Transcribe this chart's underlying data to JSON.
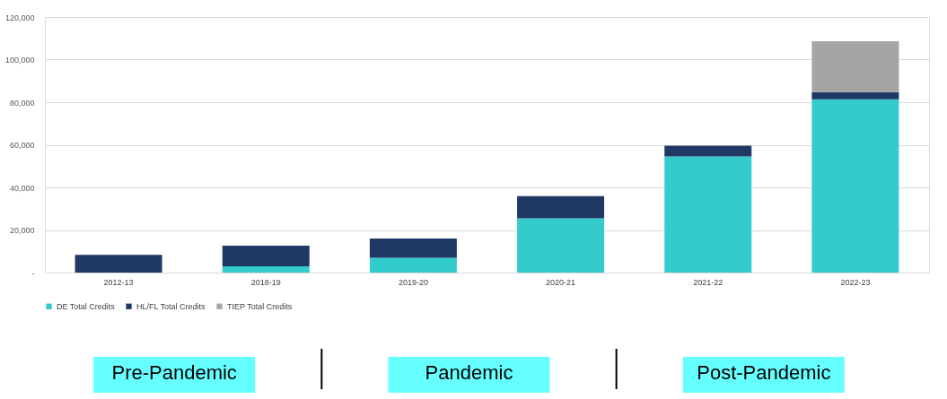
{
  "chart_data": {
    "type": "bar",
    "stacked": true,
    "categories": [
      "2012-13",
      "2018-19",
      "2019-20",
      "2020-21",
      "2021-22",
      "2022-23"
    ],
    "series": [
      {
        "name": "DE Total Credits",
        "color": "#33cbcc",
        "values": [
          null,
          2900,
          7000,
          25500,
          54500,
          81400
        ]
      },
      {
        "name": "HL/FL Total Credits",
        "color": "#1f3864",
        "values": [
          8300,
          9700,
          9000,
          10400,
          5100,
          3300
        ]
      },
      {
        "name": "TIEP Total Credits",
        "color": "#a5a5a5",
        "values": [
          null,
          null,
          null,
          null,
          null,
          23900
        ]
      }
    ],
    "ylim": [
      0,
      120000
    ],
    "yticks": [
      {
        "value": 0,
        "label": "-"
      },
      {
        "value": 20000,
        "label": "20,000"
      },
      {
        "value": 40000,
        "label": "40,000"
      },
      {
        "value": 60000,
        "label": "60,000"
      },
      {
        "value": 80000,
        "label": "80,000"
      },
      {
        "value": 100000,
        "label": "100,000"
      },
      {
        "value": 120000,
        "label": "120,000"
      }
    ],
    "grid": "y",
    "legend": "bottom",
    "annotations": [
      "Pre-Pandemic",
      "Pandemic",
      "Post-Pandemic"
    ]
  }
}
